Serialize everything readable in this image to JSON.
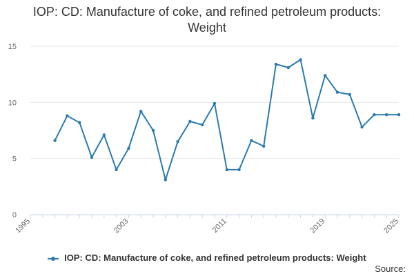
{
  "chart_data": {
    "type": "line",
    "title": "IOP: CD: Manufacture of coke, and refined petroleum products: Weight",
    "xlabel": "",
    "ylabel": "",
    "xlim": [
      1995,
      2025
    ],
    "ylim": [
      0,
      15
    ],
    "x_ticks": [
      "1995",
      "2003",
      "2011",
      "2019",
      "2025"
    ],
    "y_ticks": [
      "0",
      "5",
      "10",
      "15"
    ],
    "grid": true,
    "legend_position": "bottom",
    "series": [
      {
        "name": "IOP: CD: Manufacture of coke, and refined petroleum products: Weight",
        "color": "#2a7ab0",
        "x": [
          1997,
          1998,
          1999,
          2000,
          2001,
          2002,
          2003,
          2004,
          2005,
          2006,
          2007,
          2008,
          2009,
          2010,
          2011,
          2012,
          2013,
          2014,
          2015,
          2016,
          2017,
          2018,
          2019,
          2020,
          2021,
          2022,
          2023,
          2024,
          2025
        ],
        "values": [
          6.6,
          8.8,
          8.2,
          5.1,
          7.1,
          4.0,
          5.9,
          9.2,
          7.5,
          3.1,
          6.5,
          8.3,
          8.0,
          9.9,
          4.0,
          4.0,
          6.6,
          6.1,
          13.4,
          13.1,
          13.8,
          8.6,
          12.4,
          10.9,
          10.7,
          7.8,
          8.9,
          8.9,
          8.9
        ]
      }
    ]
  },
  "legend": {
    "label": "IOP: CD: Manufacture of coke, and refined petroleum products: Weight"
  },
  "source": {
    "label": "Source:"
  }
}
